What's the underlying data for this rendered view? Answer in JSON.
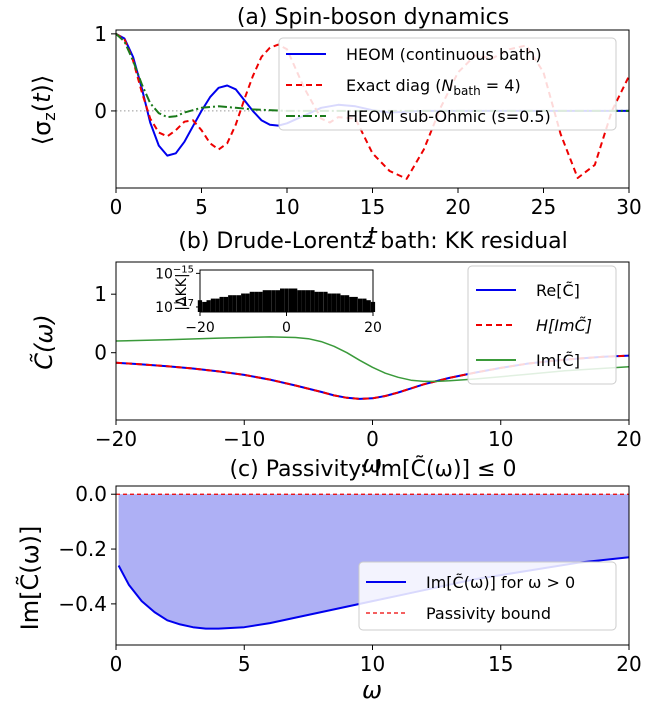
{
  "chart_data": [
    {
      "type": "line",
      "title": "(a) Spin-boson dynamics",
      "xlabel": "t",
      "ylabel": "⟨σz(t)⟩",
      "xlim": [
        0,
        30
      ],
      "ylim": [
        -1.0,
        1.05
      ],
      "xticks": [
        "0",
        "5",
        "10",
        "15",
        "20",
        "25",
        "30"
      ],
      "yticks": [
        "1",
        "0"
      ],
      "reference_line": {
        "y": 0,
        "style": "dotted",
        "color": "#999999"
      },
      "legend_position": "top-right",
      "series": [
        {
          "name": "HEOM (continuous bath)",
          "color": "#0000ee",
          "style": "solid",
          "x": [
            0,
            0.5,
            1,
            1.5,
            2,
            2.5,
            3,
            3.5,
            4,
            4.5,
            5,
            5.5,
            6,
            6.5,
            7,
            7.5,
            8,
            8.5,
            9,
            9.5,
            10,
            11,
            12,
            13,
            14,
            15,
            16,
            18,
            20,
            24,
            30
          ],
          "y": [
            1.0,
            0.94,
            0.7,
            0.3,
            -0.15,
            -0.45,
            -0.58,
            -0.55,
            -0.4,
            -0.2,
            0.0,
            0.18,
            0.3,
            0.33,
            0.28,
            0.14,
            0.0,
            -0.12,
            -0.18,
            -0.19,
            -0.16,
            -0.06,
            0.04,
            0.08,
            0.06,
            0.01,
            -0.02,
            0.0,
            0.0,
            0.0,
            0.0
          ]
        },
        {
          "name": "Exact diag (N_bath = 4)",
          "color": "#ee0000",
          "style": "dashed",
          "x": [
            0,
            0.5,
            1,
            1.5,
            2,
            2.5,
            3,
            3.5,
            4,
            4.5,
            5,
            5.5,
            6,
            6.5,
            7,
            7.5,
            8,
            8.5,
            9,
            9.5,
            10,
            11,
            12,
            12.5,
            13,
            14,
            15,
            16,
            17,
            18,
            19,
            20,
            21,
            22,
            23,
            24,
            25,
            26,
            27,
            28,
            29,
            30
          ],
          "y": [
            1.0,
            0.93,
            0.65,
            0.25,
            -0.1,
            -0.28,
            -0.33,
            -0.25,
            -0.14,
            -0.12,
            -0.25,
            -0.42,
            -0.5,
            -0.42,
            -0.18,
            0.15,
            0.45,
            0.7,
            0.82,
            0.86,
            0.8,
            0.3,
            -0.1,
            -0.15,
            -0.08,
            -0.1,
            -0.55,
            -0.78,
            -0.88,
            -0.5,
            0.05,
            0.5,
            0.72,
            0.68,
            0.8,
            0.85,
            0.5,
            -0.3,
            -0.87,
            -0.7,
            0.0,
            0.45
          ]
        },
        {
          "name": "HEOM sub-Ohmic (s=0.5)",
          "color": "#1a7a1a",
          "style": "dashdot",
          "x": [
            0,
            0.5,
            1,
            1.5,
            2,
            2.5,
            3,
            3.5,
            4,
            5,
            6,
            7,
            8,
            10,
            12,
            15,
            20,
            25,
            30
          ],
          "y": [
            1.0,
            0.9,
            0.65,
            0.35,
            0.1,
            -0.03,
            -0.08,
            -0.07,
            -0.02,
            0.04,
            0.06,
            0.04,
            0.02,
            0.0,
            0.0,
            0.0,
            0.0,
            0.0,
            0.0
          ]
        }
      ]
    },
    {
      "type": "line",
      "title": "(b) Drude-Lorentz bath: KK residual",
      "xlabel": "ω",
      "ylabel": "C̃(ω)",
      "xlim": [
        -20,
        20
      ],
      "ylim": [
        -1.15,
        1.55
      ],
      "xticks": [
        "−20",
        "−10",
        "0",
        "10",
        "20"
      ],
      "yticks": [
        "1",
        "0"
      ],
      "legend_position": "right",
      "series": [
        {
          "name": "Re[C̃]",
          "color": "#0000ee",
          "style": "solid",
          "x": [
            -20,
            -18,
            -16,
            -14,
            -12,
            -10,
            -8,
            -6,
            -4,
            -3,
            -2,
            -1,
            0,
            1,
            2,
            3,
            4,
            6,
            8,
            10,
            12,
            14,
            16,
            18,
            20
          ],
          "y": [
            -0.17,
            -0.2,
            -0.23,
            -0.27,
            -0.32,
            -0.38,
            -0.46,
            -0.56,
            -0.67,
            -0.73,
            -0.77,
            -0.79,
            -0.78,
            -0.74,
            -0.68,
            -0.61,
            -0.54,
            -0.43,
            -0.34,
            -0.26,
            -0.19,
            -0.14,
            -0.1,
            -0.07,
            -0.05
          ]
        },
        {
          "name": "H[ImC̃]",
          "color": "#ee0000",
          "style": "dashed",
          "x": [
            -20,
            -18,
            -16,
            -14,
            -12,
            -10,
            -8,
            -6,
            -4,
            -3,
            -2,
            -1,
            0,
            1,
            2,
            3,
            4,
            6,
            8,
            10,
            12,
            14,
            16,
            18,
            20
          ],
          "y": [
            -0.17,
            -0.2,
            -0.23,
            -0.27,
            -0.32,
            -0.38,
            -0.46,
            -0.56,
            -0.67,
            -0.73,
            -0.77,
            -0.79,
            -0.78,
            -0.74,
            -0.68,
            -0.61,
            -0.54,
            -0.43,
            -0.34,
            -0.26,
            -0.19,
            -0.14,
            -0.1,
            -0.07,
            -0.05
          ]
        },
        {
          "name": "Im[C̃]",
          "color": "#3a9a3a",
          "style": "solid",
          "x": [
            -20,
            -16,
            -12,
            -10,
            -8,
            -6,
            -5,
            -4,
            -3,
            -2,
            -1,
            0,
            1,
            2,
            3,
            4,
            5,
            6,
            8,
            10,
            12,
            15,
            20
          ],
          "y": [
            0.2,
            0.22,
            0.25,
            0.26,
            0.27,
            0.26,
            0.24,
            0.19,
            0.11,
            0.0,
            -0.13,
            -0.25,
            -0.35,
            -0.42,
            -0.47,
            -0.49,
            -0.49,
            -0.48,
            -0.45,
            -0.41,
            -0.37,
            -0.31,
            -0.24
          ]
        }
      ],
      "inset": {
        "ylabel": "|ΔKK|",
        "xlim": [
          -20,
          20
        ],
        "xticks": [
          "−20",
          "0",
          "20"
        ],
        "yticks": [
          "10−15",
          "10−17"
        ],
        "type": "bar",
        "x": [
          -20,
          -19,
          -18,
          -17,
          -16,
          -15,
          -14,
          -13,
          -12,
          -11,
          -10,
          -9,
          -8,
          -7,
          -6,
          -5,
          -4,
          -3,
          -2,
          -1,
          0,
          1,
          2,
          3,
          4,
          5,
          6,
          7,
          8,
          9,
          10,
          11,
          12,
          13,
          14,
          15,
          16,
          17,
          18,
          19,
          20
        ],
        "log10_abs_delta": [
          -16.6,
          -16.7,
          -16.6,
          -16.5,
          -16.5,
          -16.4,
          -16.4,
          -16.3,
          -16.3,
          -16.3,
          -16.2,
          -16.2,
          -16.1,
          -16.1,
          -16.1,
          -16.0,
          -16.0,
          -16.0,
          -16.0,
          -15.9,
          -15.9,
          -15.9,
          -15.9,
          -16.0,
          -16.0,
          -16.0,
          -16.0,
          -16.1,
          -16.1,
          -16.1,
          -16.2,
          -16.2,
          -16.2,
          -16.3,
          -16.3,
          -16.4,
          -16.4,
          -16.5,
          -16.5,
          -16.6,
          -16.7
        ]
      }
    },
    {
      "type": "area",
      "title": "(c) Passivity: Im[C̃(ω)] ≤ 0",
      "xlabel": "ω",
      "ylabel": "Im[C̃(ω)]",
      "xlim": [
        0,
        20
      ],
      "ylim": [
        -0.55,
        0.03
      ],
      "xticks": [
        "0",
        "5",
        "10",
        "15",
        "20"
      ],
      "yticks": [
        "0.0",
        "−0.2",
        "−0.4"
      ],
      "legend_position": "lower-right",
      "fill_color": "#aeb0f5",
      "series": [
        {
          "name": "Im[C̃(ω)] for ω > 0",
          "color": "#0000ee",
          "style": "solid",
          "x": [
            0.1,
            0.5,
            1,
            1.5,
            2,
            2.5,
            3,
            3.5,
            4,
            5,
            6,
            7,
            8,
            9,
            10,
            11,
            12,
            13,
            14,
            15,
            16,
            17,
            18,
            19,
            20
          ],
          "y": [
            -0.26,
            -0.33,
            -0.39,
            -0.43,
            -0.46,
            -0.475,
            -0.485,
            -0.49,
            -0.49,
            -0.485,
            -0.47,
            -0.45,
            -0.43,
            -0.41,
            -0.39,
            -0.37,
            -0.35,
            -0.33,
            -0.31,
            -0.295,
            -0.28,
            -0.265,
            -0.25,
            -0.24,
            -0.23
          ]
        },
        {
          "name": "Passivity bound",
          "color": "#ee0000",
          "style": "dashed",
          "x": [
            0,
            20
          ],
          "y": [
            0,
            0
          ]
        }
      ]
    }
  ]
}
